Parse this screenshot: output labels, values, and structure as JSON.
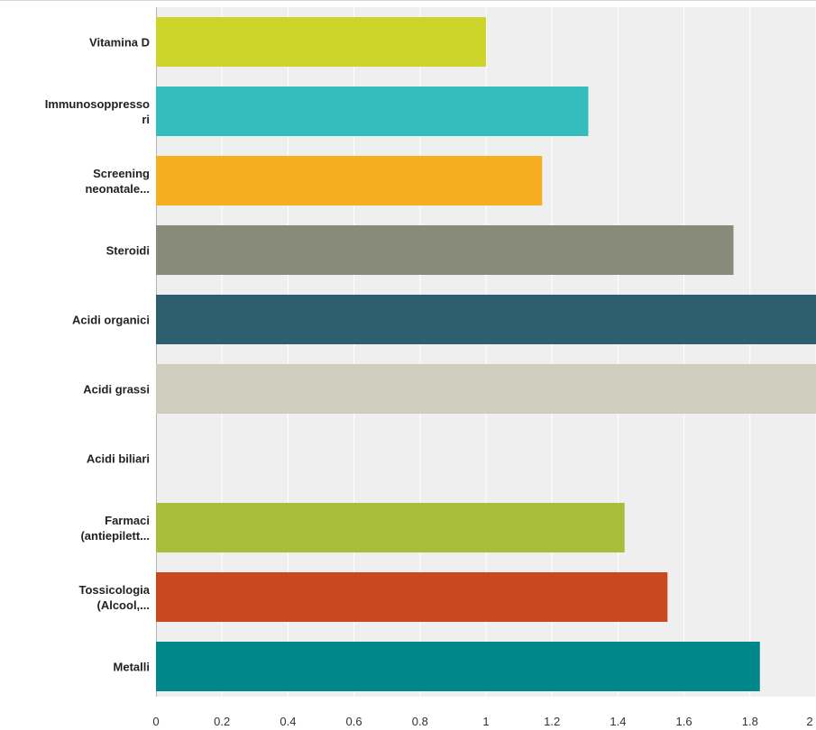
{
  "chart_data": {
    "type": "bar",
    "orientation": "horizontal",
    "categories": [
      [
        "Vitamina D"
      ],
      [
        "Immunosoppresso",
        "ri"
      ],
      [
        "Screening",
        "neonatale..."
      ],
      [
        "Steroidi"
      ],
      [
        "Acidi organici"
      ],
      [
        "Acidi grassi"
      ],
      [
        "Acidi biliari"
      ],
      [
        "Farmaci",
        "(antiepilett..."
      ],
      [
        "Tossicologia",
        "(Alcool,..."
      ],
      [
        "Metalli"
      ]
    ],
    "values": [
      1.0,
      1.31,
      1.17,
      1.75,
      2.0,
      2.0,
      0,
      1.42,
      1.55,
      1.83
    ],
    "colors": [
      "#cdd42a",
      "#33bdbd",
      "#f5ae1f",
      "#898b7a",
      "#2e5f6e",
      "#cfcdbd",
      "#cccccc",
      "#a8bd3a",
      "#c9481e",
      "#00878a"
    ],
    "xlim": [
      0,
      2
    ],
    "xticks": [
      "0",
      "0.2",
      "0.4",
      "0.6",
      "0.8",
      "1",
      "1.2",
      "1.4",
      "1.6",
      "1.8",
      "2"
    ],
    "grid": true,
    "title": "",
    "xlabel": "",
    "ylabel": ""
  },
  "colors": {
    "plot_background": "#efefef",
    "gridline": "#ffffff",
    "axis": "#b5b5b5"
  }
}
